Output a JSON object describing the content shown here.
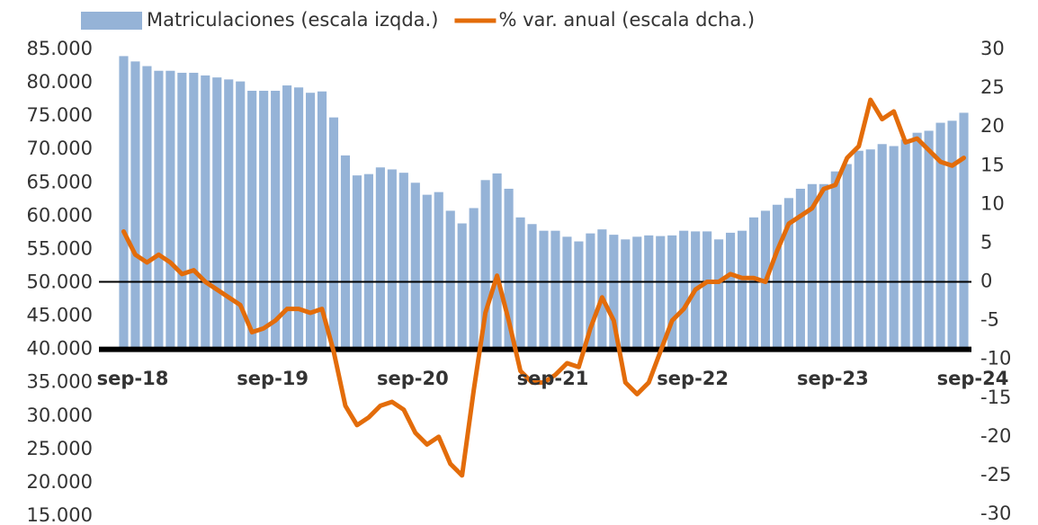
{
  "chart_data": {
    "type": "bar_line",
    "categories": [
      "sep-18",
      null,
      null,
      null,
      null,
      null,
      null,
      null,
      null,
      null,
      null,
      null,
      "sep-19",
      null,
      null,
      null,
      null,
      null,
      null,
      null,
      null,
      null,
      null,
      null,
      "sep-20",
      null,
      null,
      null,
      null,
      null,
      null,
      null,
      null,
      null,
      null,
      null,
      "sep-21",
      null,
      null,
      null,
      null,
      null,
      null,
      null,
      null,
      null,
      null,
      null,
      "sep-22",
      null,
      null,
      null,
      null,
      null,
      null,
      null,
      null,
      null,
      null,
      null,
      "sep-23",
      null,
      null,
      null,
      null,
      null,
      null,
      null,
      null,
      null,
      null,
      null,
      "sep-24"
    ],
    "series": [
      {
        "name": "Matriculaciones (escala izqda.)",
        "type": "bar",
        "color": "#95b3d7",
        "values": [
          84000,
          83200,
          82500,
          81800,
          81800,
          81500,
          81500,
          81100,
          80800,
          80500,
          80200,
          78800,
          78800,
          78800,
          79600,
          79300,
          78500,
          78700,
          74800,
          69100,
          66100,
          66300,
          67300,
          67000,
          66500,
          65000,
          63200,
          63600,
          60800,
          58900,
          61200,
          65400,
          66400,
          64100,
          59800,
          58800,
          57800,
          57800,
          56900,
          56200,
          57400,
          58000,
          57200,
          56500,
          56900,
          57100,
          57000,
          57100,
          57800,
          57700,
          57700,
          56500,
          57500,
          57800,
          59800,
          60800,
          61700,
          62700,
          64100,
          64800,
          64800,
          66700,
          67800,
          69800,
          70000,
          70800,
          70500,
          71500,
          72500,
          72800,
          74000,
          74300,
          75500
        ]
      },
      {
        "name": "% var. anual (escala dcha.)",
        "type": "line",
        "axis": "y2",
        "color": "#e36c0a",
        "values": [
          6.5,
          3.5,
          2.5,
          3.5,
          2.5,
          1,
          1.5,
          0,
          -1,
          -2,
          -3,
          -6.5,
          -6,
          -5,
          -3.5,
          -3.5,
          -4,
          -3.5,
          -9,
          -16,
          -18.5,
          -17.5,
          -16,
          -15.5,
          -16.5,
          -19.5,
          -21,
          -20,
          -23.5,
          -25,
          -14,
          -4,
          0.8,
          -5,
          -11.5,
          -13,
          -13,
          -12,
          -10.5,
          -11,
          -6,
          -2,
          -5,
          -13,
          -14.5,
          -13,
          -9,
          -5,
          -3.5,
          -1,
          0,
          0,
          1,
          0.5,
          0.5,
          0,
          4,
          7.5,
          8.5,
          9.5,
          12,
          12.5,
          16,
          17.5,
          23.5,
          21,
          22,
          18,
          18.5,
          17,
          15.5,
          15,
          16
        ]
      }
    ],
    "ylim": [
      15000,
      85000
    ],
    "yticks": [
      {
        "value": 15000,
        "label": "15.000"
      },
      {
        "value": 20000,
        "label": "20.000"
      },
      {
        "value": 25000,
        "label": "25.000"
      },
      {
        "value": 30000,
        "label": "30.000"
      },
      {
        "value": 35000,
        "label": "35.000"
      },
      {
        "value": 40000,
        "label": "40.000"
      },
      {
        "value": 45000,
        "label": "45.000"
      },
      {
        "value": 50000,
        "label": "50.000"
      },
      {
        "value": 55000,
        "label": "55.000"
      },
      {
        "value": 60000,
        "label": "60.000"
      },
      {
        "value": 65000,
        "label": "65.000"
      },
      {
        "value": 70000,
        "label": "70.000"
      },
      {
        "value": 75000,
        "label": "75.000"
      },
      {
        "value": 80000,
        "label": "80.000"
      },
      {
        "value": 85000,
        "label": "85.000"
      }
    ],
    "x_axis_at": 40000,
    "y2lim": [
      -30,
      30
    ],
    "y2ticks": [
      -30,
      -25,
      -20,
      -15,
      -10,
      -5,
      0,
      5,
      10,
      15,
      20,
      25,
      30
    ],
    "legend": "top"
  }
}
